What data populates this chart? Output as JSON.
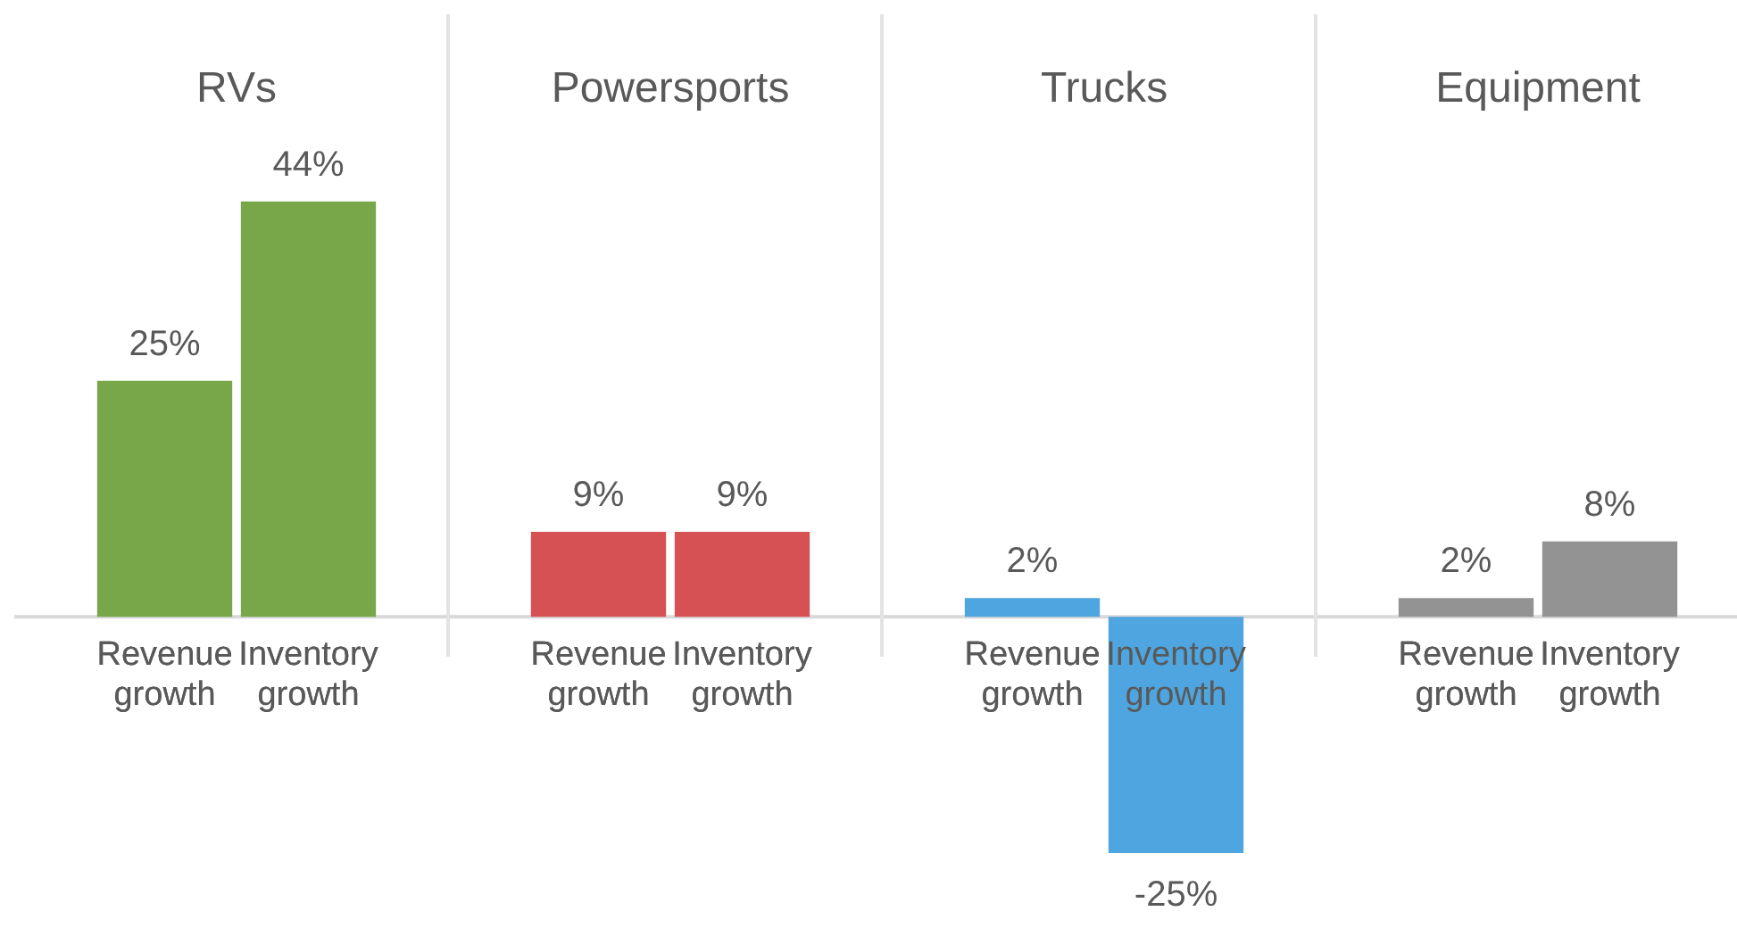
{
  "chart_data": [
    {
      "type": "bar",
      "title": "RVs",
      "categories": [
        "Revenue growth",
        "Inventory growth"
      ],
      "values": [
        25,
        44
      ],
      "colors": [
        "#78a74a",
        "#78a74a"
      ],
      "value_labels": [
        "25%",
        "44%"
      ]
    },
    {
      "type": "bar",
      "title": "Powersports",
      "categories": [
        "Revenue growth",
        "Inventory growth"
      ],
      "values": [
        9,
        9
      ],
      "colors": [
        "#d65153",
        "#d65153"
      ],
      "value_labels": [
        "9%",
        "9%"
      ]
    },
    {
      "type": "bar",
      "title": "Trucks",
      "categories": [
        "Revenue growth",
        "Inventory growth"
      ],
      "values": [
        2,
        -25
      ],
      "colors": [
        "#4ea5df",
        "#4ea5df"
      ],
      "value_labels": [
        "2%",
        "-25%"
      ]
    },
    {
      "type": "bar",
      "title": "Equipment",
      "categories": [
        "Revenue growth",
        "Inventory growth"
      ],
      "values": [
        2,
        8
      ],
      "colors": [
        "#939393",
        "#939393"
      ],
      "value_labels": [
        "2%",
        "8%"
      ]
    }
  ]
}
